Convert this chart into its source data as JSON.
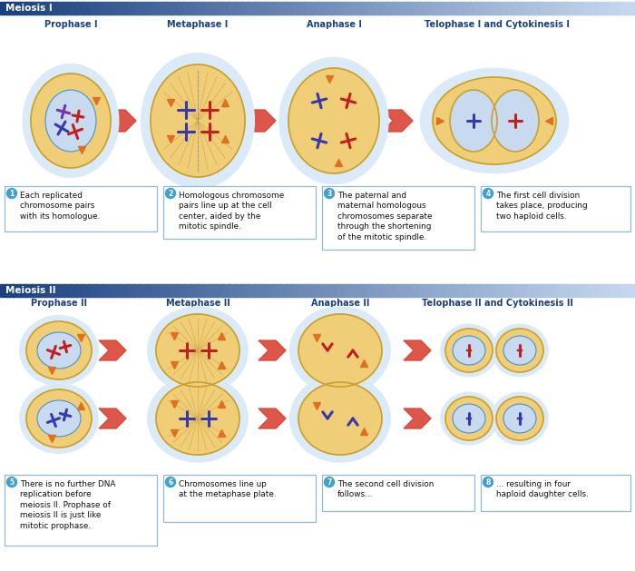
{
  "title_meiosis1": "Meiosis I",
  "title_meiosis2": "Meiosis II",
  "phases1": [
    "Prophase I",
    "Metaphase I",
    "Anaphase I",
    "Telophase I and Cytokinesis I"
  ],
  "phases2": [
    "Prophase II",
    "Metaphase II",
    "Anaphase II",
    "Telophase II and Cytokinesis II"
  ],
  "desc1": [
    "Each replicated\nchromosome pairs\nwith its homologue.",
    "Homologous chromosome\npairs line up at the cell\ncenter, aided by the\nmitotic spindle.",
    "The paternal and\nmaternal homologous\nchromosomes separate\nthrough the shortening\nof the mitotic spindle.",
    "The first cell division\ntakes place, producing\ntwo haploid cells."
  ],
  "desc2": [
    "There is no further DNA\nreplication before\nmeiosis II. Prophase of\nmeiosis II is just like\nmitotic prophase.",
    "Chromosomes line up\nat the metaphase plate.",
    "The second cell division\nfollows...",
    "... resulting in four\nhaploid daughter cells."
  ],
  "header_color_dark": "#1a4080",
  "header_color_light": "#c8daf0",
  "header_text_color": "#ffffff",
  "phase_label_color": "#1a4080",
  "bg_color": "#ffffff",
  "cell_body_color": "#f0ce78",
  "cell_nucleus_color": "#c8daf0",
  "cell_glow_color": "#daeaf8",
  "arrow_color": "#d84030",
  "box_border_color": "#90b8d0",
  "chrom_blue": "#3838aa",
  "chrom_red": "#c02020",
  "chrom_orange": "#e07020",
  "spindle_color": "#d0a848",
  "num_circle_color": "#40a0d0"
}
